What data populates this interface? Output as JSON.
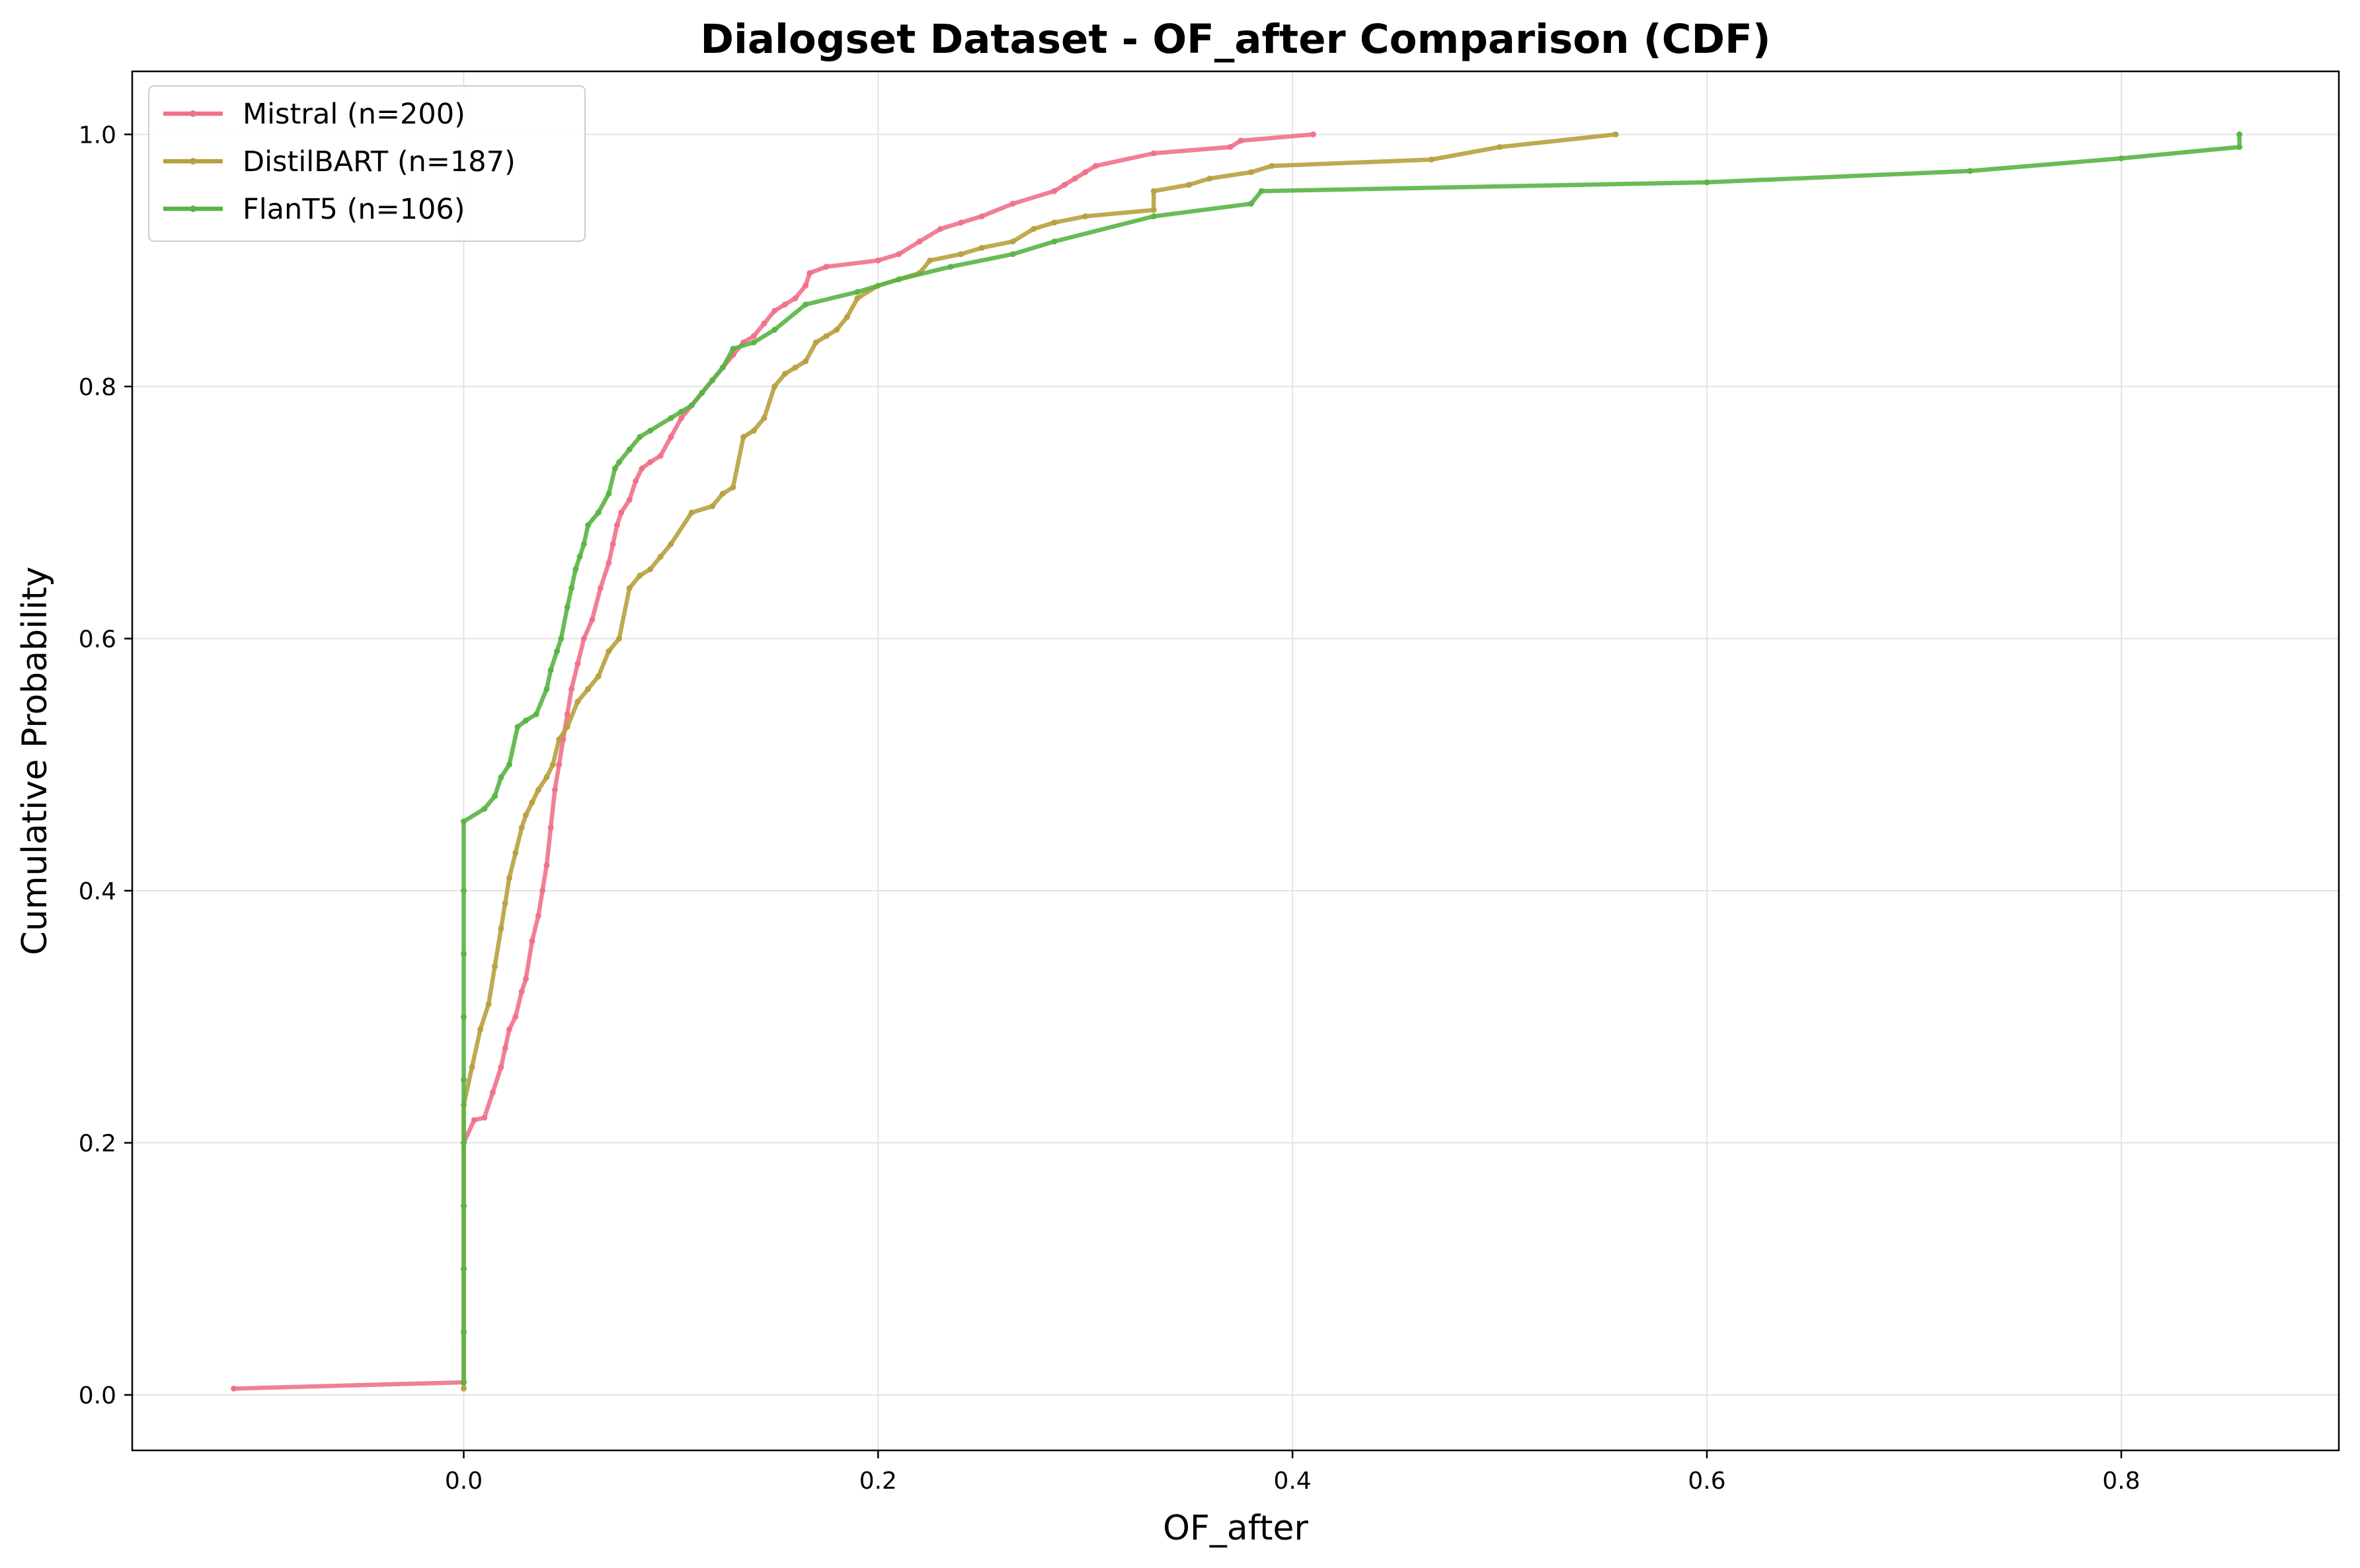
{
  "chart_data": {
    "type": "line",
    "title": "Dialogset Dataset - OF_after Comparison (CDF)",
    "xlabel": "OF_after",
    "ylabel": "Cumulative Probability",
    "xlim": [
      -0.16,
      0.905
    ],
    "ylim": [
      -0.044,
      1.05
    ],
    "xticks": [
      0.0,
      0.2,
      0.4,
      0.6,
      0.8
    ],
    "xtick_labels": [
      "0.0",
      "0.2",
      "0.4",
      "0.6",
      "0.8"
    ],
    "yticks": [
      0.0,
      0.2,
      0.4,
      0.6,
      0.8,
      1.0
    ],
    "ytick_labels": [
      "0.0",
      "0.2",
      "0.4",
      "0.6",
      "0.8",
      "1.0"
    ],
    "grid": true,
    "legend_position": "upper-left",
    "series": [
      {
        "name": "Mistral (n=200)",
        "color": "#f0718a",
        "x": [
          -0.111,
          0.0,
          0.0,
          0.0,
          0.0,
          0.0,
          0.005,
          0.01,
          0.014,
          0.018,
          0.02,
          0.022,
          0.025,
          0.028,
          0.03,
          0.033,
          0.036,
          0.038,
          0.04,
          0.042,
          0.044,
          0.046,
          0.048,
          0.05,
          0.052,
          0.055,
          0.058,
          0.062,
          0.066,
          0.07,
          0.072,
          0.074,
          0.076,
          0.08,
          0.083,
          0.086,
          0.09,
          0.095,
          0.1,
          0.105,
          0.11,
          0.115,
          0.12,
          0.125,
          0.13,
          0.135,
          0.14,
          0.145,
          0.15,
          0.155,
          0.16,
          0.165,
          0.167,
          0.175,
          0.2,
          0.21,
          0.22,
          0.23,
          0.24,
          0.25,
          0.265,
          0.285,
          0.29,
          0.295,
          0.3,
          0.305,
          0.333,
          0.37,
          0.375,
          0.41
        ],
        "y": [
          0.005,
          0.01,
          0.05,
          0.1,
          0.15,
          0.2,
          0.218,
          0.22,
          0.24,
          0.26,
          0.275,
          0.29,
          0.3,
          0.32,
          0.33,
          0.36,
          0.38,
          0.4,
          0.42,
          0.45,
          0.48,
          0.5,
          0.52,
          0.54,
          0.56,
          0.58,
          0.6,
          0.615,
          0.64,
          0.66,
          0.675,
          0.69,
          0.7,
          0.71,
          0.725,
          0.735,
          0.74,
          0.745,
          0.76,
          0.775,
          0.785,
          0.795,
          0.805,
          0.815,
          0.825,
          0.835,
          0.84,
          0.85,
          0.86,
          0.865,
          0.87,
          0.88,
          0.89,
          0.895,
          0.9,
          0.905,
          0.915,
          0.925,
          0.93,
          0.935,
          0.945,
          0.955,
          0.96,
          0.965,
          0.97,
          0.975,
          0.985,
          0.99,
          0.995,
          1.0
        ]
      },
      {
        "name": "DistilBART (n=187)",
        "color": "#b8a03f",
        "x": [
          0.0,
          0.0,
          0.0,
          0.0,
          0.0,
          0.0,
          0.004,
          0.008,
          0.012,
          0.015,
          0.018,
          0.02,
          0.022,
          0.025,
          0.028,
          0.03,
          0.033,
          0.036,
          0.04,
          0.043,
          0.046,
          0.05,
          0.055,
          0.06,
          0.065,
          0.07,
          0.075,
          0.08,
          0.085,
          0.09,
          0.095,
          0.1,
          0.11,
          0.12,
          0.125,
          0.13,
          0.135,
          0.14,
          0.145,
          0.15,
          0.155,
          0.16,
          0.165,
          0.17,
          0.175,
          0.18,
          0.185,
          0.19,
          0.2,
          0.22,
          0.225,
          0.24,
          0.25,
          0.265,
          0.275,
          0.285,
          0.3,
          0.333,
          0.333,
          0.35,
          0.36,
          0.38,
          0.39,
          0.467,
          0.5,
          0.556
        ],
        "y": [
          0.005,
          0.05,
          0.1,
          0.15,
          0.2,
          0.23,
          0.26,
          0.29,
          0.31,
          0.34,
          0.37,
          0.39,
          0.41,
          0.43,
          0.45,
          0.46,
          0.47,
          0.48,
          0.49,
          0.5,
          0.52,
          0.53,
          0.55,
          0.56,
          0.57,
          0.59,
          0.6,
          0.64,
          0.65,
          0.655,
          0.665,
          0.675,
          0.7,
          0.705,
          0.715,
          0.72,
          0.76,
          0.765,
          0.775,
          0.8,
          0.81,
          0.815,
          0.82,
          0.835,
          0.84,
          0.845,
          0.855,
          0.87,
          0.88,
          0.89,
          0.9,
          0.905,
          0.91,
          0.915,
          0.925,
          0.93,
          0.935,
          0.94,
          0.955,
          0.96,
          0.965,
          0.97,
          0.975,
          0.98,
          0.99,
          1.0
        ]
      },
      {
        "name": "FlanT5 (n=106)",
        "color": "#5ab445",
        "x": [
          0.0,
          0.0,
          0.0,
          0.0,
          0.0,
          0.0,
          0.0,
          0.0,
          0.0,
          0.0,
          0.01,
          0.015,
          0.018,
          0.022,
          0.026,
          0.03,
          0.035,
          0.04,
          0.042,
          0.045,
          0.047,
          0.05,
          0.052,
          0.054,
          0.056,
          0.058,
          0.06,
          0.065,
          0.07,
          0.073,
          0.075,
          0.08,
          0.085,
          0.09,
          0.1,
          0.105,
          0.11,
          0.115,
          0.12,
          0.125,
          0.13,
          0.14,
          0.15,
          0.165,
          0.19,
          0.21,
          0.235,
          0.265,
          0.285,
          0.333,
          0.38,
          0.385,
          0.6,
          0.727,
          0.8,
          0.857,
          0.857
        ],
        "y": [
          0.01,
          0.05,
          0.1,
          0.15,
          0.2,
          0.25,
          0.3,
          0.35,
          0.4,
          0.455,
          0.465,
          0.475,
          0.49,
          0.5,
          0.53,
          0.535,
          0.54,
          0.56,
          0.575,
          0.59,
          0.6,
          0.625,
          0.64,
          0.655,
          0.665,
          0.675,
          0.69,
          0.7,
          0.715,
          0.735,
          0.74,
          0.75,
          0.76,
          0.765,
          0.775,
          0.78,
          0.785,
          0.795,
          0.805,
          0.815,
          0.83,
          0.835,
          0.845,
          0.865,
          0.875,
          0.885,
          0.895,
          0.905,
          0.915,
          0.935,
          0.945,
          0.955,
          0.962,
          0.971,
          0.981,
          0.99,
          1.0
        ]
      }
    ]
  }
}
